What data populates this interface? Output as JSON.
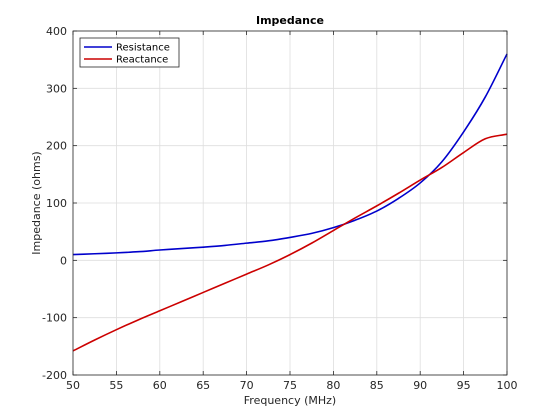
{
  "chart_data": {
    "type": "line",
    "title": "Impedance",
    "xlabel": "Frequency (MHz)",
    "ylabel": "Impedance (ohms)",
    "xlim": [
      50,
      100
    ],
    "ylim": [
      -200,
      400
    ],
    "xticks": [
      50,
      55,
      60,
      65,
      70,
      75,
      80,
      85,
      90,
      95,
      100
    ],
    "yticks": [
      -200,
      -100,
      0,
      100,
      200,
      300,
      400
    ],
    "grid": true,
    "legend_location": "top-left",
    "x": [
      50,
      52.5,
      55,
      57.5,
      60,
      62.5,
      65,
      67.5,
      70,
      72.5,
      75,
      77.5,
      80,
      82.5,
      85,
      87.5,
      90,
      92.5,
      95,
      97.5,
      100
    ],
    "series": [
      {
        "name": "Resistance",
        "color": "#0000cc",
        "values": [
          10,
          11.5,
          13,
          15,
          18,
          20.5,
          23,
          26,
          30,
          34,
          40,
          47,
          57,
          70,
          86,
          108,
          135,
          172,
          224,
          285,
          360
        ]
      },
      {
        "name": "Reactance",
        "color": "#cc0000",
        "values": [
          -158,
          -139,
          -121,
          -104,
          -88,
          -72,
          -56,
          -40,
          -24,
          -8,
          10,
          30,
          52,
          74,
          95,
          117,
          140,
          162,
          188,
          212,
          220
        ]
      }
    ]
  }
}
